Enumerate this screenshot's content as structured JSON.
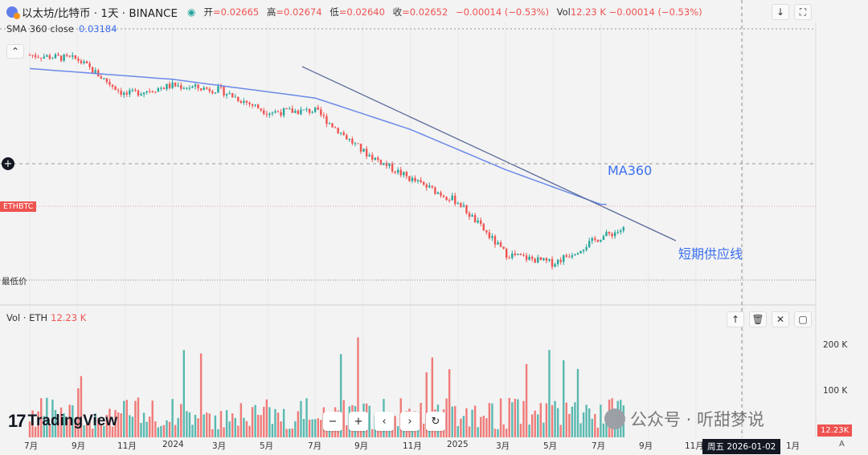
{
  "header": {
    "symbol_title": "以太坊/比特币 · 1天 · BINANCE",
    "ohlc": [
      {
        "label": "开",
        "value": "=0.02665"
      },
      {
        "label": "高",
        "value": "=0.02674"
      },
      {
        "label": "低",
        "value": "=0.02640"
      },
      {
        "label": "收",
        "value": "=0.02652"
      },
      {
        "label": "",
        "value": "−0.00014 (−0.53%)"
      },
      {
        "label": "Vol",
        "value": "12.23 K  −0.00014 (−0.53%)"
      }
    ]
  },
  "indicator": {
    "name": "SMA 360 close",
    "value": "0.03184"
  },
  "tags": {
    "symbol": "ETHBTC",
    "low": "最低价"
  },
  "annotations": {
    "ma": "MA360",
    "supply_line": "短期供应线"
  },
  "volume": {
    "label": "Vol · ETH",
    "value": "12.23 K",
    "axis": [
      "200 K",
      "100 K"
    ]
  },
  "x_axis": [
    "7月",
    "9月",
    "11月",
    "2024",
    "3月",
    "5月",
    "7月",
    "9月",
    "11月",
    "2025",
    "3月",
    "5月",
    "7月",
    "9月",
    "11月",
    "1月"
  ],
  "crosshair_date": "周五  2026-01-02",
  "price_box": "12.23K",
  "watermark": "公众号 · 听甜梦说",
  "logo": "TradingView",
  "nav_buttons": [
    "−",
    "+",
    "‹",
    "›",
    "↻"
  ],
  "icons": {
    "download": "download-icon",
    "fullscreen": "fullscreen-icon",
    "crosshair": "crosshair-plus-icon",
    "collapse": "chevron-up-icon",
    "trash": "trash-icon",
    "arrow_up": "arrow-up-icon",
    "close": "close-icon",
    "alert": "letter-a-icon"
  },
  "colors": {
    "up": "#26a69a",
    "down": "#ef5350",
    "sma": "#6b8ae8",
    "trendline": "#5a6b9a",
    "annotation": "#3a6ff0"
  },
  "chart_data": {
    "type": "line",
    "title": "以太坊/比特币 · 1天 · BINANCE",
    "series": [
      {
        "name": "ETHBTC",
        "x": [
          "2023-07",
          "2023-09",
          "2023-11",
          "2024-01",
          "2024-03",
          "2024-05",
          "2024-07",
          "2024-09",
          "2024-11",
          "2025-01",
          "2025-03",
          "2025-05",
          "2025-07",
          "2025-08"
        ],
        "values": [
          0.0637,
          0.0628,
          0.0552,
          0.0572,
          0.0562,
          0.0515,
          0.0518,
          0.0431,
          0.0372,
          0.0323,
          0.0212,
          0.0192,
          0.0248,
          0.0265
        ]
      },
      {
        "name": "SMA 360 close",
        "x": [
          "2023-07",
          "2024-01",
          "2024-07",
          "2024-11",
          "2025-03",
          "2025-07"
        ],
        "values": [
          0.0608,
          0.0585,
          0.0545,
          0.0478,
          0.0392,
          0.0318
        ]
      }
    ],
    "volume_axis": [
      "200 K",
      "100 K"
    ]
  }
}
